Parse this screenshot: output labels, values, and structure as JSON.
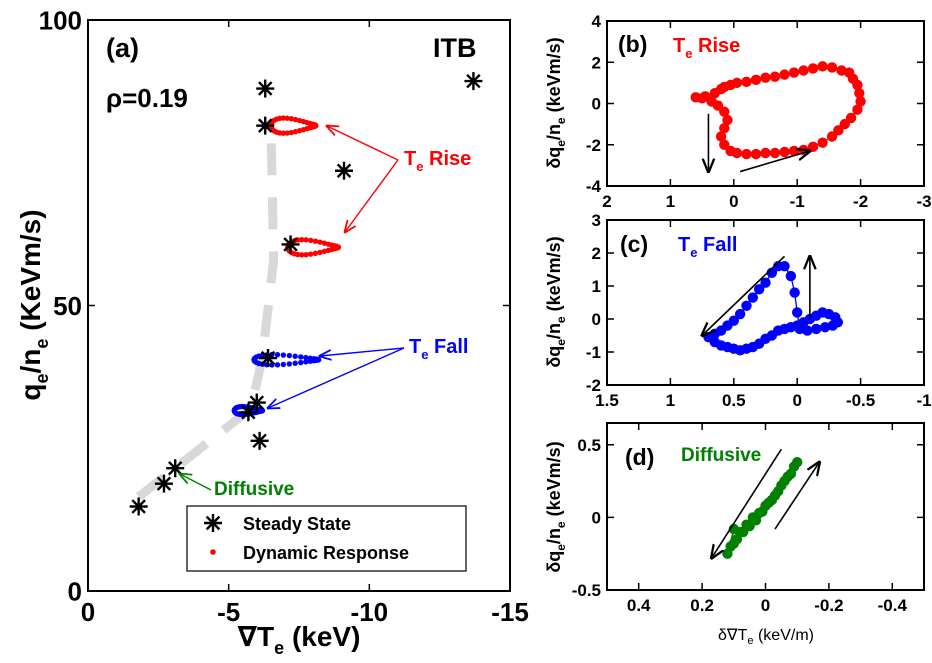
{
  "chart_data": [
    {
      "panel": "a",
      "type": "scatter",
      "panel_label": "(a)",
      "tag": "ITB",
      "rho_label": "ρ=0.19",
      "xlabel": "∇T",
      "xlabel_sub": "e",
      "xlabel_unit": " (keV)",
      "ylabel_parts": [
        "q",
        "e",
        "/n",
        "e",
        " (KeVm/s)"
      ],
      "xlim": [
        0,
        -15
      ],
      "ylim": [
        0,
        100
      ],
      "xticks": [
        0,
        -5,
        -10,
        -15
      ],
      "xtick_labels": [
        "0",
        "-5",
        "-10",
        "-15"
      ],
      "yticks": [
        0,
        50,
        100
      ],
      "ytick_labels": [
        "0",
        "50",
        "100"
      ],
      "colors": {
        "steady": "#000000",
        "rise": "#ff0000",
        "fall": "#0000ff",
        "diffusive": "#008000",
        "trend": "#d8d8d8"
      },
      "steady_state": [
        {
          "x": -1.8,
          "y": 14.8
        },
        {
          "x": -2.7,
          "y": 18.8
        },
        {
          "x": -3.1,
          "y": 21.5
        },
        {
          "x": -5.7,
          "y": 31.3
        },
        {
          "x": -6.0,
          "y": 33.0
        },
        {
          "x": -6.1,
          "y": 26.3
        },
        {
          "x": -6.4,
          "y": 40.8
        },
        {
          "x": -7.2,
          "y": 60.7
        },
        {
          "x": -6.3,
          "y": 81.5
        },
        {
          "x": -6.3,
          "y": 88.0
        },
        {
          "x": -9.1,
          "y": 73.6
        },
        {
          "x": -13.7,
          "y": 89.3
        }
      ],
      "trend_line": [
        {
          "x": -1.8,
          "y": 16.5
        },
        {
          "x": -3.1,
          "y": 21.5
        },
        {
          "x": -5.8,
          "y": 32.0
        },
        {
          "x": -6.2,
          "y": 41.0
        },
        {
          "x": -6.6,
          "y": 58.0
        },
        {
          "x": -6.5,
          "y": 82.0
        }
      ],
      "loops": [
        {
          "group": "rise",
          "x0": -6.5,
          "x1": -8.1,
          "y": 81.5,
          "amp": 1.9
        },
        {
          "group": "rise",
          "x0": -7.1,
          "x1": -8.9,
          "y": 60.2,
          "amp": 1.9
        },
        {
          "group": "fall",
          "x0": -5.9,
          "x1": -8.2,
          "y": 40.5,
          "amp": 1.3
        },
        {
          "group": "fall",
          "x0": -5.2,
          "x1": -6.2,
          "y": 31.6,
          "amp": 1.0
        }
      ],
      "annotations": {
        "rise_label": "T",
        "rise_sub": "e",
        "rise_text": " Rise",
        "fall_label": "T",
        "fall_sub": "e",
        "fall_text": " Fall",
        "diffusive_text": "Diffusive"
      },
      "legend": {
        "steady": "Steady State",
        "dynamic": "Dynamic Response",
        "placement": "bottom-center"
      }
    },
    {
      "panel": "b",
      "type": "scatter",
      "panel_label": "(b)",
      "title_parts": [
        "T",
        "e",
        " Rise"
      ],
      "color": "#ff0000",
      "xlim": [
        2,
        -3
      ],
      "ylim": [
        -4,
        4
      ],
      "xticks": [
        2,
        1,
        0,
        -1,
        -2,
        -3
      ],
      "xtick_labels": [
        "2",
        "1",
        "0",
        "-1",
        "-2",
        "-3"
      ],
      "yticks": [
        -4,
        -2,
        0,
        2,
        4
      ],
      "ytick_labels": [
        "-4",
        "-2",
        "0",
        "2",
        "4"
      ],
      "ylabel_parts": [
        "δq",
        "e",
        "/n",
        "e",
        " (keVm/s)"
      ],
      "x": [
        0.6,
        0.45,
        0.3,
        0.2,
        0.15,
        0.05,
        -0.05,
        -0.2,
        -0.35,
        -0.5,
        -0.65,
        -0.8,
        -0.95,
        -1.1,
        -1.25,
        -1.4,
        -1.55,
        -1.7,
        -1.82,
        -1.88,
        -1.95,
        -1.98,
        -2.0,
        -1.95,
        -1.85,
        -1.75,
        -1.65,
        -1.55,
        -1.4,
        -1.25,
        -1.1,
        -0.95,
        -0.8,
        -0.65,
        -0.5,
        -0.35,
        -0.2,
        -0.05,
        0.05,
        0.15,
        0.2,
        0.15,
        0.1,
        0.15,
        0.25,
        0.35,
        0.5
      ],
      "y": [
        0.3,
        0.35,
        0.5,
        0.7,
        0.8,
        0.9,
        1.0,
        1.05,
        1.15,
        1.25,
        1.3,
        1.4,
        1.5,
        1.6,
        1.7,
        1.8,
        1.75,
        1.6,
        1.5,
        1.2,
        0.9,
        0.5,
        0.1,
        -0.3,
        -0.7,
        -1.0,
        -1.3,
        -1.6,
        -1.9,
        -2.1,
        -2.25,
        -2.3,
        -2.35,
        -2.4,
        -2.4,
        -2.45,
        -2.45,
        -2.4,
        -2.3,
        -2.0,
        -1.6,
        -1.2,
        -0.8,
        -0.4,
        -0.1,
        0.1,
        0.25
      ],
      "arrows": [
        {
          "x1": 0.4,
          "y1": -0.5,
          "x2": 0.4,
          "y2": -3.3
        },
        {
          "x1": -0.1,
          "y1": -3.3,
          "x2": -1.2,
          "y2": -2.3
        }
      ]
    },
    {
      "panel": "c",
      "type": "scatter",
      "panel_label": "(c)",
      "title_parts": [
        "T",
        "e",
        " Fall"
      ],
      "color": "#0000ff",
      "xlim": [
        1.5,
        -1
      ],
      "ylim": [
        -2,
        3
      ],
      "xticks": [
        1.5,
        1,
        0.5,
        0,
        -0.5,
        -1
      ],
      "xtick_labels": [
        "1.5",
        "1",
        "0.5",
        "0",
        "-0.5",
        "-1"
      ],
      "yticks": [
        -2,
        -1,
        0,
        1,
        2,
        3
      ],
      "ytick_labels": [
        "-2",
        "-1",
        "0",
        "1",
        "2",
        "3"
      ],
      "ylabel_parts": [
        "δq",
        "e",
        "/n",
        "e",
        " (keVm/s)"
      ],
      "x": [
        0.7,
        0.65,
        0.6,
        0.55,
        0.5,
        0.45,
        0.4,
        0.35,
        0.3,
        0.25,
        0.2,
        0.15,
        0.1,
        0.05,
        0.0,
        -0.05,
        -0.1,
        -0.15,
        -0.2,
        -0.25,
        -0.3,
        -0.32,
        -0.28,
        -0.22,
        -0.15,
        -0.08,
        -0.02,
        0.0,
        0.02,
        0.05,
        0.1,
        0.15,
        0.2,
        0.25,
        0.3,
        0.35,
        0.4,
        0.45,
        0.5,
        0.55,
        0.6,
        0.65
      ],
      "y": [
        -0.55,
        -0.7,
        -0.8,
        -0.85,
        -0.9,
        -0.95,
        -0.9,
        -0.85,
        -0.75,
        -0.6,
        -0.5,
        -0.35,
        -0.3,
        -0.25,
        -0.2,
        -0.1,
        0.0,
        0.1,
        0.2,
        0.15,
        0.05,
        -0.1,
        -0.2,
        -0.25,
        -0.3,
        -0.35,
        -0.3,
        0.2,
        0.8,
        1.3,
        1.6,
        1.6,
        1.4,
        1.1,
        0.9,
        0.65,
        0.4,
        0.15,
        -0.05,
        -0.2,
        -0.35,
        -0.45
      ],
      "arrows": [
        {
          "x1": 0.1,
          "y1": 1.9,
          "x2": 0.75,
          "y2": -0.5
        },
        {
          "x1": -0.1,
          "y1": 0.0,
          "x2": -0.1,
          "y2": 1.9
        }
      ]
    },
    {
      "panel": "d",
      "type": "scatter",
      "panel_label": "(d)",
      "title_parts": [
        "Diffusive"
      ],
      "color": "#008000",
      "xlim": [
        0.5,
        -0.5
      ],
      "ylim": [
        -0.5,
        0.65
      ],
      "xticks": [
        0.4,
        0.2,
        0,
        -0.2,
        -0.4
      ],
      "xtick_labels": [
        "0.4",
        "0.2",
        "0",
        "-0.2",
        "-0.4"
      ],
      "yticks": [
        -0.5,
        0,
        0.5
      ],
      "ytick_labels": [
        "-0.5",
        "0",
        "0.5"
      ],
      "xlabel_parts": [
        "δ∇T",
        "e",
        " (keV/m)"
      ],
      "ylabel_parts": [
        "δq",
        "e",
        "/n",
        "e",
        " (keVm/s)"
      ],
      "x": [
        0.12,
        0.1,
        0.08,
        0.06,
        0.04,
        0.02,
        0.0,
        -0.02,
        -0.04,
        -0.06,
        -0.08,
        -0.1,
        -0.09,
        -0.07,
        -0.05,
        -0.03,
        -0.01,
        0.01,
        0.03,
        0.05,
        0.07,
        0.09,
        0.11,
        0.1
      ],
      "y": [
        -0.25,
        -0.18,
        -0.1,
        -0.05,
        0.0,
        0.03,
        0.08,
        0.12,
        0.18,
        0.25,
        0.3,
        0.38,
        0.35,
        0.28,
        0.22,
        0.15,
        0.1,
        0.04,
        -0.02,
        -0.06,
        -0.1,
        -0.15,
        -0.2,
        -0.08
      ],
      "arrows": [
        {
          "x1": -0.05,
          "y1": 0.47,
          "x2": 0.17,
          "y2": -0.28
        },
        {
          "x1": -0.03,
          "y1": -0.08,
          "x2": -0.17,
          "y2": 0.38
        }
      ]
    }
  ]
}
